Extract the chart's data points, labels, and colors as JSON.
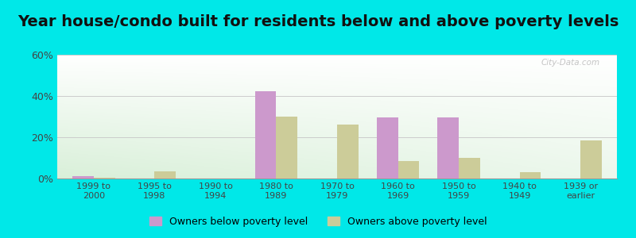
{
  "title": "Year house/condo built for residents below and above poverty levels",
  "categories": [
    "1999 to\n2000",
    "1995 to\n1998",
    "1990 to\n1994",
    "1980 to\n1989",
    "1970 to\n1979",
    "1960 to\n1969",
    "1950 to\n1959",
    "1940 to\n1949",
    "1939 or\nearlier"
  ],
  "below_poverty": [
    1.0,
    0.0,
    0.0,
    42.5,
    0.0,
    29.5,
    29.5,
    0.0,
    0.0
  ],
  "above_poverty": [
    0.5,
    3.5,
    0.0,
    30.0,
    26.0,
    8.5,
    10.0,
    3.0,
    18.5
  ],
  "below_color": "#cc99cc",
  "above_color": "#cccc99",
  "ylim": [
    0,
    60
  ],
  "yticks": [
    0,
    20,
    40,
    60
  ],
  "ytick_labels": [
    "0%",
    "20%",
    "40%",
    "60%"
  ],
  "outer_color": "#00e8e8",
  "legend_below": "Owners below poverty level",
  "legend_above": "Owners above poverty level",
  "title_fontsize": 14,
  "watermark": "City-Data.com"
}
